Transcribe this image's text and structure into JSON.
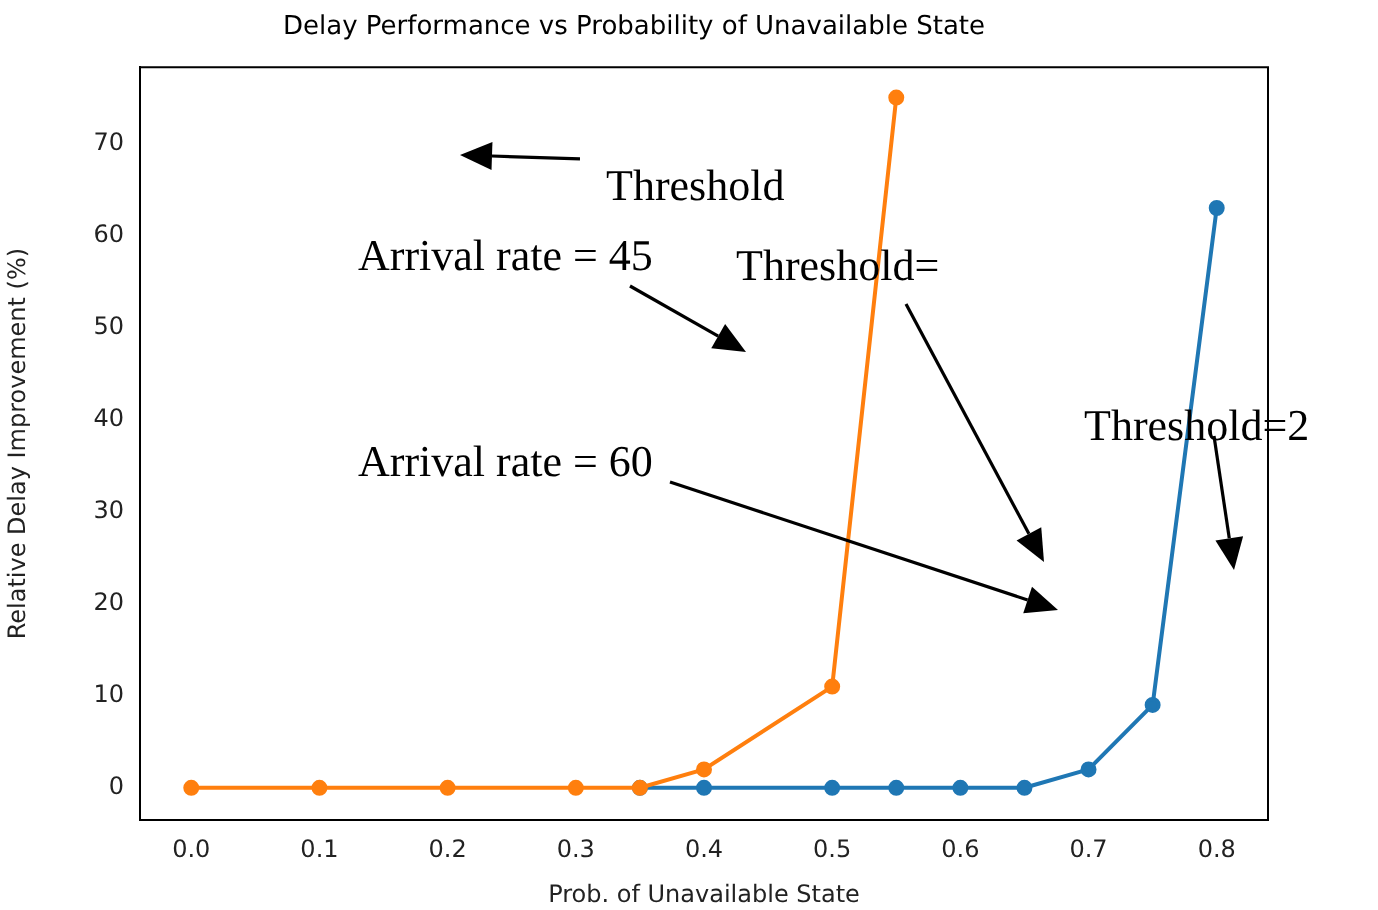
{
  "chart_data": {
    "type": "line",
    "title": "Delay Performance vs Probability of Unavailable State",
    "xlabel": "Prob. of Unavailable State",
    "ylabel": "Relative Delay Improvement (%)",
    "xlim": [
      -0.04,
      0.84
    ],
    "xticks": [
      {
        "value": 0,
        "label": "0.0"
      },
      0.1,
      0.2,
      0.3,
      0.4,
      0.5,
      0.6,
      0.7,
      0.8
    ],
    "ylim": [
      -3.5,
      78.3
    ],
    "yticks": [
      0,
      10,
      20,
      30,
      40,
      50,
      60,
      70
    ],
    "series": [
      {
        "color": "#1f77b4",
        "x": [
          0.35,
          0.4,
          0.5,
          0.55,
          0.6,
          0.65,
          0.7,
          0.75,
          0.8
        ],
        "values": [
          0,
          0,
          0,
          0,
          0,
          0,
          2,
          9,
          63
        ]
      },
      {
        "color": "#ff7f0e",
        "x": [
          0,
          0.1,
          0.2,
          0.3,
          0.35,
          0.4,
          0.5,
          0.55
        ],
        "values": [
          0,
          0,
          0,
          0,
          0,
          2,
          11,
          75
        ]
      }
    ],
    "marker": "circle",
    "grid": false,
    "legend": false,
    "annotations": [
      "Threshold",
      "Arrival rate = 45",
      "Threshold=",
      "Arrival rate = 60",
      "Threshold=2"
    ]
  }
}
